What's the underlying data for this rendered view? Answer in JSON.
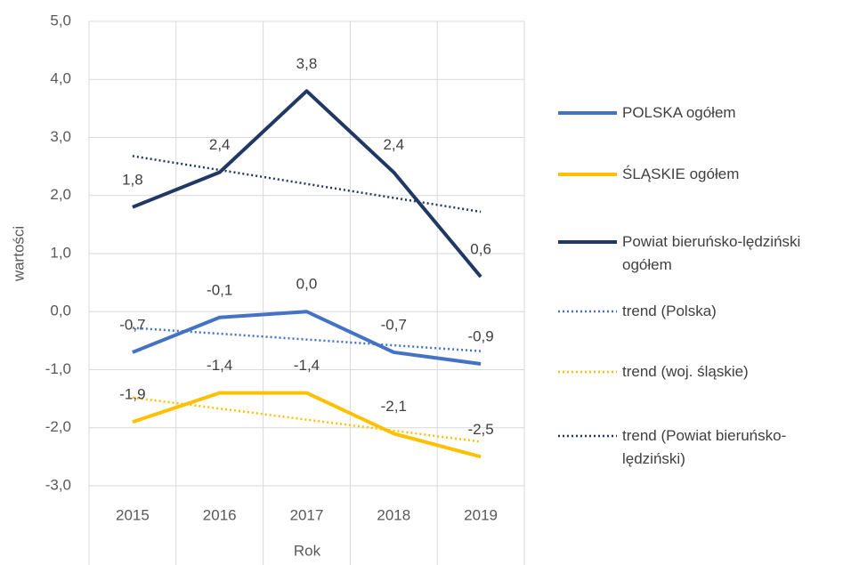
{
  "chart_data": {
    "type": "line",
    "x_label": "Rok",
    "y_label": "wartości",
    "categories": [
      "2015",
      "2016",
      "2017",
      "2018",
      "2019"
    ],
    "ylim": [
      -3,
      5
    ],
    "yticks": [
      {
        "value": -3,
        "label": "-3,0"
      },
      {
        "value": -2,
        "label": "-2,0"
      },
      {
        "value": -1,
        "label": "-1,0"
      },
      {
        "value": 0,
        "label": "0,0"
      },
      {
        "value": 1,
        "label": "1,0"
      },
      {
        "value": 2,
        "label": "2,0"
      },
      {
        "value": 3,
        "label": "3,0"
      },
      {
        "value": 4,
        "label": "4,0"
      },
      {
        "value": 5,
        "label": "5,0"
      }
    ],
    "grid": true,
    "legend": "right",
    "series": [
      {
        "name": "POLSKA ogółem",
        "color": "#4472c4",
        "line_style": "solid",
        "values": [
          -0.7,
          -0.1,
          0.0,
          -0.7,
          -0.9
        ],
        "value_labels": [
          "-0,7",
          "-0,1",
          "0,0",
          "-0,7",
          "-0,9"
        ]
      },
      {
        "name": "ŚLĄSKIE ogółem",
        "color": "#ffc000",
        "line_style": "solid",
        "values": [
          -1.9,
          -1.4,
          -1.4,
          -2.1,
          -2.5
        ],
        "value_labels": [
          "-1,9",
          "-1,4",
          "-1,4",
          "-2,1",
          "-2,5"
        ]
      },
      {
        "name": "Powiat bieruńsko-lędziński ogółem",
        "color": "#203864",
        "line_style": "solid",
        "values": [
          1.8,
          2.4,
          3.8,
          2.4,
          0.6
        ],
        "value_labels": [
          "1,8",
          "2,4",
          "3,8",
          "2,4",
          "0,6"
        ]
      },
      {
        "name": "trend (Polska)",
        "color": "#4472c4",
        "line_style": "dotted",
        "values": [
          -0.28,
          -0.38,
          -0.48,
          -0.58,
          -0.68
        ]
      },
      {
        "name": "trend (woj. śląskie)",
        "color": "#ffc000",
        "line_style": "dotted",
        "values": [
          -1.48,
          -1.67,
          -1.86,
          -2.05,
          -2.24
        ]
      },
      {
        "name": "trend (Powiat bieruńsko-lędziński)",
        "color": "#203864",
        "line_style": "dotted",
        "values": [
          2.68,
          2.44,
          2.2,
          1.96,
          1.72
        ]
      }
    ]
  }
}
